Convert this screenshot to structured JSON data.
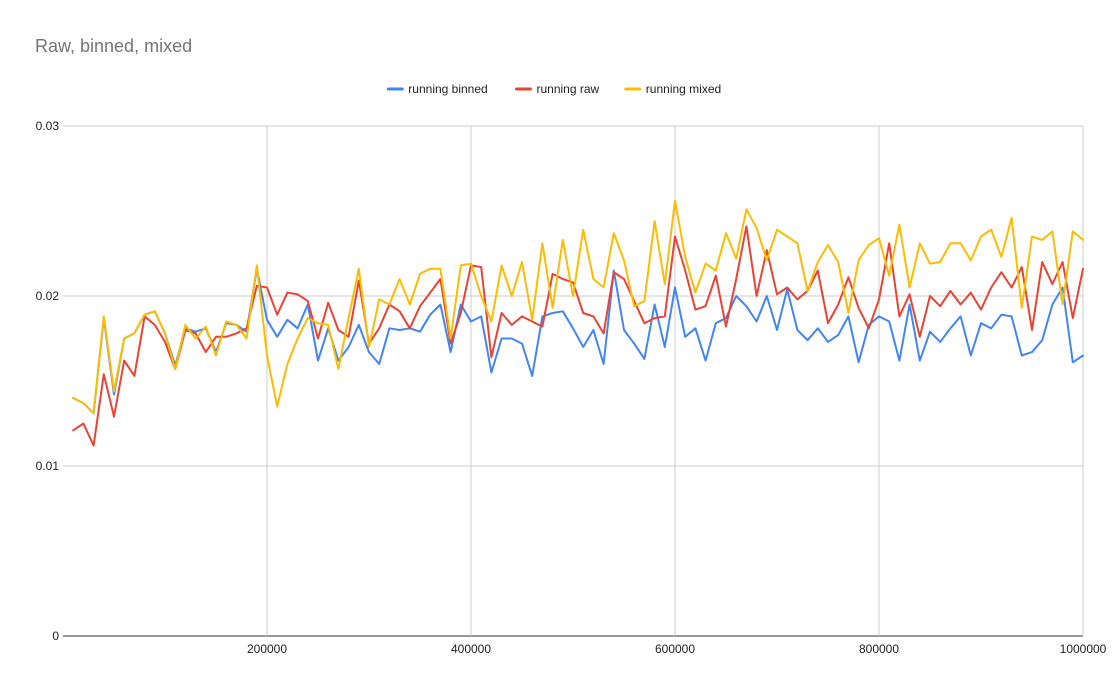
{
  "title": "Raw, binned, mixed",
  "chart_data": {
    "type": "line",
    "title": "Raw, binned, mixed",
    "xlabel": "",
    "ylabel": "",
    "xlim": [
      0,
      1000000
    ],
    "ylim": [
      0,
      0.03
    ],
    "x_ticks": [
      200000,
      400000,
      600000,
      800000,
      1000000
    ],
    "x_tick_labels": [
      "200000",
      "400000",
      "600000",
      "800000",
      "1000000"
    ],
    "y_ticks": [
      0,
      0.01,
      0.02,
      0.03
    ],
    "y_tick_labels": [
      "0",
      "0.01",
      "0.02",
      "0.03"
    ],
    "grid": true,
    "legend_position": "top",
    "x_start": 0,
    "x_step": 10000,
    "series": [
      {
        "name": "running binned",
        "color": "#4285f4",
        "values": [
          0.014,
          0.0137,
          0.0131,
          0.0187,
          0.0142,
          0.0175,
          0.0178,
          0.0189,
          0.0191,
          0.0178,
          0.0159,
          0.0181,
          0.0179,
          0.0181,
          0.0167,
          0.0184,
          0.0183,
          0.0179,
          0.0216,
          0.0186,
          0.0176,
          0.0186,
          0.0181,
          0.0195,
          0.0162,
          0.0181,
          0.0162,
          0.017,
          0.0183,
          0.0167,
          0.016,
          0.0181,
          0.018,
          0.0181,
          0.0179,
          0.0189,
          0.0195,
          0.0167,
          0.0195,
          0.0185,
          0.0188,
          0.0155,
          0.0175,
          0.0175,
          0.0172,
          0.0153,
          0.0188,
          0.019,
          0.0191,
          0.0181,
          0.017,
          0.018,
          0.016,
          0.0215,
          0.018,
          0.0172,
          0.0163,
          0.0195,
          0.017,
          0.0205,
          0.0176,
          0.0181,
          0.0162,
          0.0184,
          0.0187,
          0.02,
          0.0194,
          0.0185,
          0.02,
          0.018,
          0.0204,
          0.018,
          0.0174,
          0.0181,
          0.0173,
          0.0177,
          0.0188,
          0.0161,
          0.0183,
          0.0188,
          0.0185,
          0.0162,
          0.0195,
          0.0162,
          0.0179,
          0.0173,
          0.0181,
          0.0188,
          0.0165,
          0.0184,
          0.0181,
          0.0189,
          0.0188,
          0.0165,
          0.0167,
          0.0174,
          0.0195,
          0.0205,
          0.0161,
          0.0165
        ]
      },
      {
        "name": "running raw",
        "color": "#ea4335",
        "values": [
          0.0121,
          0.0125,
          0.0112,
          0.0154,
          0.0129,
          0.0162,
          0.0153,
          0.0188,
          0.0183,
          0.0173,
          0.0157,
          0.018,
          0.0178,
          0.0167,
          0.0176,
          0.0176,
          0.0178,
          0.0181,
          0.0206,
          0.0205,
          0.0189,
          0.0202,
          0.0201,
          0.0197,
          0.0175,
          0.0196,
          0.018,
          0.0176,
          0.0209,
          0.0172,
          0.0181,
          0.0195,
          0.0191,
          0.0181,
          0.0194,
          0.0202,
          0.021,
          0.0172,
          0.019,
          0.0218,
          0.0217,
          0.0164,
          0.019,
          0.0183,
          0.0188,
          0.0185,
          0.0182,
          0.0213,
          0.021,
          0.0208,
          0.019,
          0.0188,
          0.0178,
          0.0214,
          0.021,
          0.0197,
          0.0184,
          0.0187,
          0.0188,
          0.0235,
          0.0215,
          0.0192,
          0.0194,
          0.0212,
          0.0182,
          0.021,
          0.0241,
          0.02,
          0.0227,
          0.0201,
          0.0205,
          0.0198,
          0.0203,
          0.0215,
          0.0184,
          0.0195,
          0.0211,
          0.0193,
          0.0181,
          0.0198,
          0.0231,
          0.0188,
          0.0201,
          0.0176,
          0.02,
          0.0194,
          0.0203,
          0.0195,
          0.0202,
          0.0192,
          0.0205,
          0.0214,
          0.0205,
          0.0217,
          0.018,
          0.022,
          0.0207,
          0.022,
          0.0187,
          0.0216
        ]
      },
      {
        "name": "running mixed",
        "color": "#fbbc04",
        "values": [
          0.014,
          0.0137,
          0.0131,
          0.0188,
          0.0144,
          0.0175,
          0.0178,
          0.0189,
          0.0191,
          0.0178,
          0.0157,
          0.0183,
          0.0175,
          0.0182,
          0.0165,
          0.0185,
          0.0183,
          0.0175,
          0.0218,
          0.0165,
          0.0135,
          0.016,
          0.0175,
          0.0187,
          0.0184,
          0.0183,
          0.0157,
          0.0187,
          0.0216,
          0.017,
          0.0198,
          0.0195,
          0.021,
          0.0195,
          0.0213,
          0.0216,
          0.0216,
          0.0175,
          0.0218,
          0.0219,
          0.02,
          0.0185,
          0.0218,
          0.02,
          0.022,
          0.0186,
          0.0231,
          0.0193,
          0.0233,
          0.02,
          0.0239,
          0.021,
          0.0205,
          0.0237,
          0.0221,
          0.0194,
          0.0197,
          0.0244,
          0.0207,
          0.0256,
          0.0223,
          0.0202,
          0.0219,
          0.0215,
          0.0237,
          0.0222,
          0.0251,
          0.024,
          0.0221,
          0.0239,
          0.0235,
          0.0231,
          0.0203,
          0.022,
          0.023,
          0.022,
          0.019,
          0.0221,
          0.023,
          0.0234,
          0.0212,
          0.0242,
          0.0205,
          0.0231,
          0.0219,
          0.022,
          0.0231,
          0.0231,
          0.0221,
          0.0235,
          0.0239,
          0.0223,
          0.0246,
          0.0193,
          0.0235,
          0.0233,
          0.0238,
          0.0195,
          0.0238,
          0.0233
        ]
      }
    ]
  }
}
